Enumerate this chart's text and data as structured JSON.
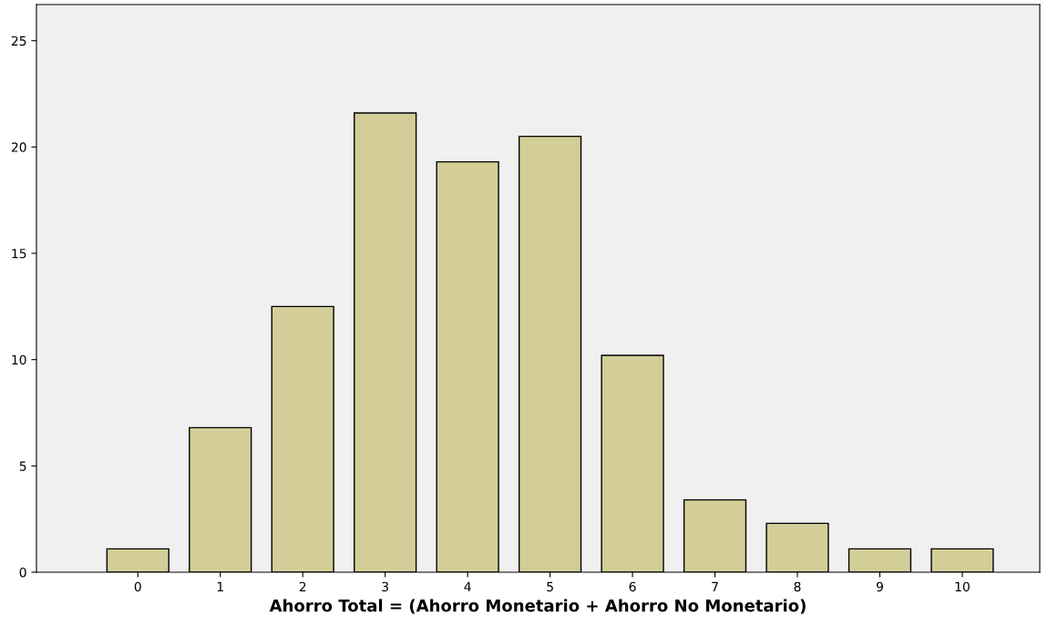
{
  "chart_data": {
    "type": "bar",
    "xlabel": "Ahorro Total = (Ahorro Monetario + Ahorro No Monetario)",
    "categories": [
      "0",
      "1",
      "2",
      "3",
      "4",
      "5",
      "6",
      "7",
      "8",
      "9",
      "10"
    ],
    "values": [
      1.1,
      6.8,
      12.5,
      21.6,
      19.3,
      20.5,
      10.2,
      3.4,
      2.3,
      1.1,
      1.1
    ],
    "color": "#d3ce97",
    "ylim": [
      0,
      26.7
    ],
    "yticks": [
      0,
      5,
      10,
      15,
      20,
      25
    ],
    "grid": false,
    "legend": false
  }
}
